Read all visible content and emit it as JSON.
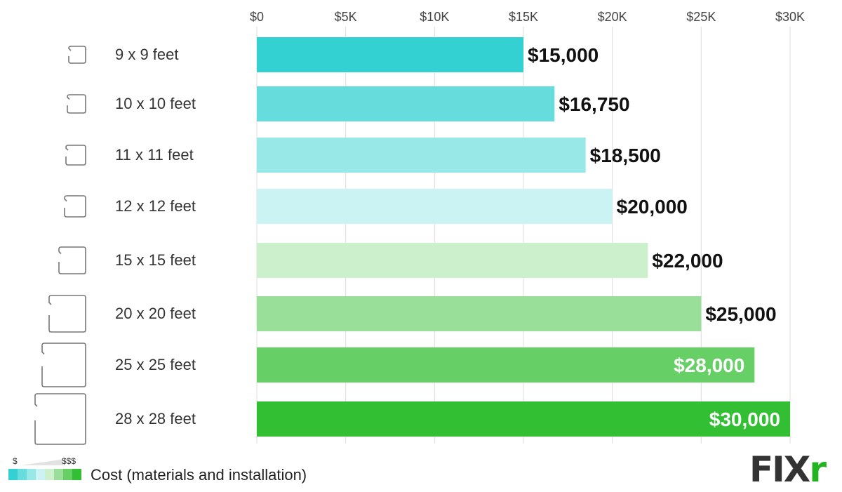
{
  "chart_data": {
    "type": "bar",
    "orientation": "horizontal",
    "categories": [
      "9 x 9 feet",
      "10 x 10 feet",
      "11 x 11 feet",
      "12 x 12 feet",
      "15 x 15 feet",
      "20 x 20 feet",
      "25 x 25 feet",
      "28 x 28 feet"
    ],
    "values": [
      15000,
      16750,
      18500,
      20000,
      22000,
      25000,
      28000,
      30000
    ],
    "data_labels": [
      "$15,000",
      "$16,750",
      "$18,500",
      "$20,000",
      "$22,000",
      "$25,000",
      "$28,000",
      "$30,000"
    ],
    "colors": [
      "#33d1d1",
      "#66dcdc",
      "#99e8e8",
      "#ccf3f3",
      "#ccefcc",
      "#99df99",
      "#66cf66",
      "#33bf33"
    ],
    "xlim": [
      0,
      30000
    ],
    "x_ticks": [
      0,
      5000,
      10000,
      15000,
      20000,
      25000,
      30000
    ],
    "x_tick_labels": [
      "$0",
      "$5K",
      "$10K",
      "$15K",
      "$20K",
      "$25K",
      "$30K"
    ],
    "x_axis_position": "top",
    "grid": true,
    "category_icon": "room-floorplan-icon",
    "legend": {
      "low_label": "$",
      "high_label": "$$$",
      "title": "Cost (materials and installation)",
      "placement": "bottom-left"
    }
  },
  "logo": {
    "text_main": "FIX",
    "text_accent": "r"
  }
}
